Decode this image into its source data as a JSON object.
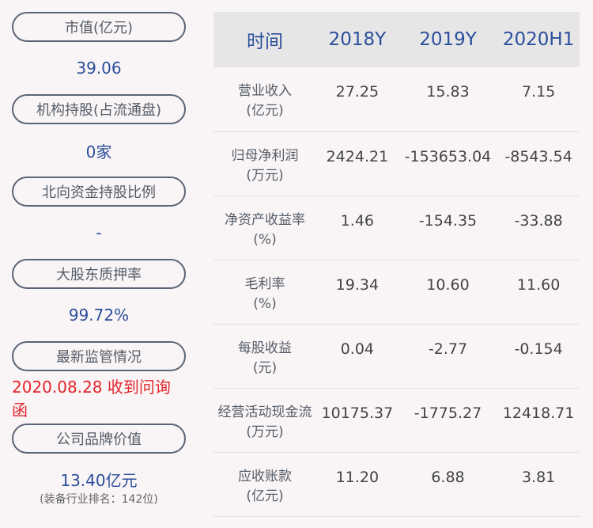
{
  "left": [
    {
      "label": "市值(亿元)",
      "value": "39.06"
    },
    {
      "label": "机构持股(占流通盘)",
      "value": "0家"
    },
    {
      "label": "北向资金持股比例",
      "value": "-"
    },
    {
      "label": "大股东质押率",
      "value": "99.72%"
    },
    {
      "label": "最新监管情况",
      "value": "2020.08.28 收到问询函"
    },
    {
      "label": "公司品牌价值",
      "value": "13.40亿元",
      "note": "(装备行业排名：142位)"
    }
  ],
  "table": {
    "headers": [
      "时间",
      "2018Y",
      "2019Y",
      "2020H1"
    ],
    "rows": [
      {
        "name": "营业收入",
        "unit": "(亿元)",
        "values": [
          "27.25",
          "15.83",
          "7.15"
        ]
      },
      {
        "name": "归母净利润",
        "unit": "(万元)",
        "values": [
          "2424.21",
          "-153653.04",
          "-8543.54"
        ]
      },
      {
        "name": "净资产收益率",
        "unit": "(%)",
        "values": [
          "1.46",
          "-154.35",
          "-33.88"
        ]
      },
      {
        "name": "毛利率",
        "unit": "(%)",
        "values": [
          "19.34",
          "10.60",
          "11.60"
        ]
      },
      {
        "name": "每股收益",
        "unit": "(元)",
        "values": [
          "0.04",
          "-2.77",
          "-0.154"
        ]
      },
      {
        "name": "经营活动现金流",
        "unit": "(万元)",
        "values": [
          "10175.37",
          "-1775.27",
          "12418.71"
        ]
      },
      {
        "name": "应收账款",
        "unit": "(亿元)",
        "values": [
          "11.20",
          "6.88",
          "3.81"
        ]
      }
    ]
  },
  "colors": {
    "accent": "#2c4e9b",
    "alert": "#e3242b",
    "header_bg": "#e6e6e6"
  }
}
